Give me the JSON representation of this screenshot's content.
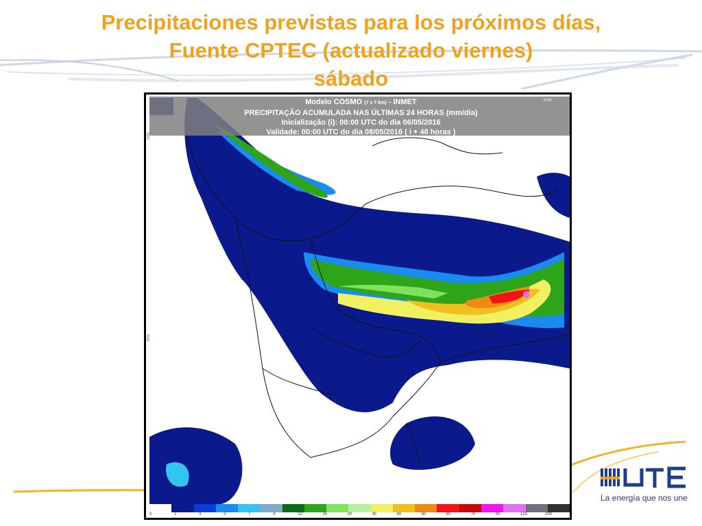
{
  "title": {
    "line1": "Precipitaciones previstas para los próximos días,",
    "line2": "Fuente CPTEC (actualizado viernes)",
    "line3": "sábado"
  },
  "map": {
    "header_line1_prefix": "Modelo COSMO",
    "header_line1_small": "(7 x 7 km)",
    "header_line1_suffix": "- INMET",
    "header_line2": "PRECIPITAÇÃO ACUMULADA NAS ÚLTIMAS 24 HORAS (mm/dia)",
    "header_line3": "Inicialização (i): 00:00 UTC do dia 06/05/2016",
    "header_line4": "Validade: 00:00 UTC do dia 08/05/2016 ( i + 48 horas )",
    "lon_label": "50W",
    "lat_top": "20S",
    "lat_mid": "30S",
    "colorbar": {
      "labels": [
        "0",
        "1",
        "3",
        "5",
        "7",
        "9",
        "12",
        "16",
        "20",
        "30",
        "40",
        "50",
        "60",
        "70",
        "90",
        "125",
        "200"
      ],
      "colors": [
        "#ffffff",
        "#0a1a8c",
        "#0a3ad8",
        "#1a8cf0",
        "#35c4f0",
        "#80aacc",
        "#0a6a14",
        "#2ea41a",
        "#7ee25a",
        "#b4f0a0",
        "#f0f060",
        "#f0c020",
        "#f08a14",
        "#f01414",
        "#c40a0a",
        "#f014f0",
        "#e070f0",
        "#707080",
        "#303030"
      ]
    }
  },
  "logo": {
    "text": "UTE",
    "tagline": "La energía que nos une"
  }
}
